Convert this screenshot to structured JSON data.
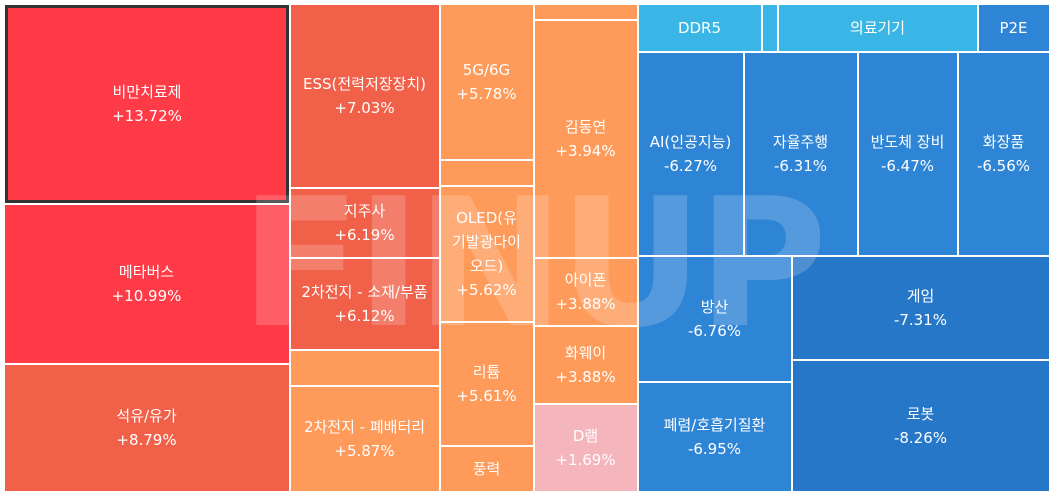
{
  "chart_data": {
    "type": "treemap",
    "colors": {
      "up_strong": "#ff3b47",
      "up_mid": "#f1614a",
      "up_soft": "#f6774d",
      "up_orange": "#fe9a5a",
      "up_light": "#f8b98c",
      "up_pink": "#f5b5bd",
      "down_light": "#3ab6e6",
      "down_mid": "#2e84d5",
      "down_deep": "#2777c8"
    },
    "items": [
      {
        "id": "c01",
        "name": "비만치료제",
        "value": "+13.72%",
        "change": 13.72,
        "color": "#ff3b47",
        "selected": true
      },
      {
        "id": "c02",
        "name": "메타버스",
        "value": "+10.99%",
        "change": 10.99,
        "color": "#ff3b47"
      },
      {
        "id": "c03",
        "name": "석유/유가",
        "value": "+8.79%",
        "change": 8.79,
        "color": "#f1614a"
      },
      {
        "id": "c04",
        "name": "ESS(전력저장장치)",
        "value": "+7.03%",
        "change": 7.03,
        "color": "#f1614a"
      },
      {
        "id": "c05",
        "name": "지주사",
        "value": "+6.19%",
        "change": 6.19,
        "color": "#f1614a"
      },
      {
        "id": "c06",
        "name": "2차전지 - 소재/부품",
        "value": "+6.12%",
        "change": 6.12,
        "color": "#f1614a"
      },
      {
        "id": "c07",
        "name": "",
        "value": "",
        "change": null,
        "color": "#fe9a5a"
      },
      {
        "id": "c08",
        "name": "2차전지 - 폐배터리",
        "value": "+5.87%",
        "change": 5.87,
        "color": "#fe9a5a"
      },
      {
        "id": "c09",
        "name": "5G/6G",
        "value": "+5.78%",
        "change": 5.78,
        "color": "#fe9a5a"
      },
      {
        "id": "c10",
        "name": "",
        "value": "",
        "change": null,
        "color": "#fe9a5a"
      },
      {
        "id": "c11",
        "name": "OLED(유기발광다이오드)",
        "value": "+5.62%",
        "change": 5.62,
        "color": "#fe9a5a"
      },
      {
        "id": "c12",
        "name": "리튬",
        "value": "+5.61%",
        "change": 5.61,
        "color": "#fe9a5a"
      },
      {
        "id": "c13",
        "name": "풍력",
        "value": "",
        "change": null,
        "color": "#fe9a5a"
      },
      {
        "id": "c14",
        "name": "",
        "value": "",
        "change": null,
        "color": "#fe9a5a"
      },
      {
        "id": "c15",
        "name": "김동연",
        "value": "+3.94%",
        "change": 3.94,
        "color": "#fe9a5a"
      },
      {
        "id": "c16",
        "name": "아이폰",
        "value": "+3.88%",
        "change": 3.88,
        "color": "#fe9a5a"
      },
      {
        "id": "c17",
        "name": "화웨이",
        "value": "+3.88%",
        "change": 3.88,
        "color": "#fe9a5a"
      },
      {
        "id": "c18",
        "name": "D램",
        "value": "+1.69%",
        "change": 1.69,
        "color": "#f5b5bd"
      },
      {
        "id": "c19",
        "name": "DDR5",
        "value": "",
        "change": null,
        "color": "#3ab6e6"
      },
      {
        "id": "c20",
        "name": "",
        "value": "",
        "change": null,
        "color": "#3ab6e6"
      },
      {
        "id": "c21",
        "name": "의료기기",
        "value": "",
        "change": null,
        "color": "#3ab6e6"
      },
      {
        "id": "c22",
        "name": "P2E",
        "value": "",
        "change": null,
        "color": "#2e84d5"
      },
      {
        "id": "c23",
        "name": "AI(인공지능)",
        "value": "-6.27%",
        "change": -6.27,
        "color": "#2e84d5"
      },
      {
        "id": "c24",
        "name": "자율주행",
        "value": "-6.31%",
        "change": -6.31,
        "color": "#2e84d5"
      },
      {
        "id": "c25",
        "name": "반도체 장비",
        "value": "-6.47%",
        "change": -6.47,
        "color": "#2e84d5"
      },
      {
        "id": "c26",
        "name": "화장품",
        "value": "-6.56%",
        "change": -6.56,
        "color": "#2e84d5"
      },
      {
        "id": "c27",
        "name": "방산",
        "value": "-6.76%",
        "change": -6.76,
        "color": "#2e84d5"
      },
      {
        "id": "c28",
        "name": "게임",
        "value": "-7.31%",
        "change": -7.31,
        "color": "#2777c8"
      },
      {
        "id": "c29",
        "name": "폐렴/호흡기질환",
        "value": "-6.95%",
        "change": -6.95,
        "color": "#2e84d5"
      },
      {
        "id": "c30",
        "name": "로봇",
        "value": "-8.26%",
        "change": -8.26,
        "color": "#2777c8"
      }
    ]
  },
  "watermark": "FINUP"
}
